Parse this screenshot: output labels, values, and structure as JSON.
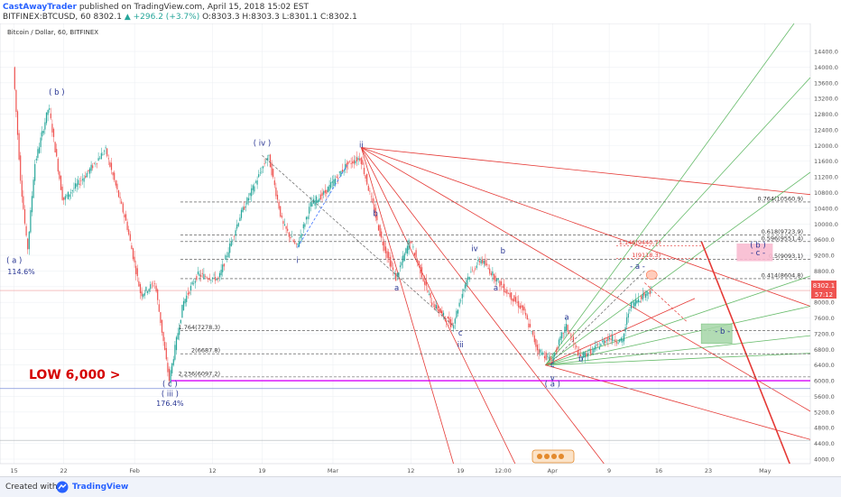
{
  "header": {
    "author": "CastAwayTrader",
    "published_text": "published on TradingView.com, April 15, 2018 15:02 EST",
    "symbol": "BITFINEX:BTCUSD, 60",
    "price": "8302.1",
    "change": "▲ +296.2 (+3.7%)",
    "ohlc": "O:8303.3 H:8303.3 L:8301.1 C:8302.1",
    "legend": "Bitcoin / Dollar, 60, BITFINEX"
  },
  "footer": {
    "created_label": "Created with",
    "brand": "TradingView"
  },
  "price_badge": {
    "price": "8302.1",
    "countdown": "57:12"
  },
  "chart_data": {
    "type": "candlestick",
    "symbol": "BTCUSD",
    "exchange": "BITFINEX",
    "interval": "60",
    "ylim": [
      4000,
      15000
    ],
    "y_ticks": [
      4000,
      4400,
      4800,
      5200,
      5600,
      6000,
      6400,
      6800,
      7200,
      7600,
      8000,
      8400,
      8800,
      9200,
      9600,
      10000,
      10400,
      10800,
      11200,
      11600,
      12000,
      12400,
      12800,
      13200,
      13600,
      14000,
      14400
    ],
    "x_ticks": [
      "15",
      "22",
      "Feb",
      "12",
      "19",
      "Mar",
      "12",
      "19",
      "12:00",
      "Apr",
      "9",
      "16",
      "23",
      "May"
    ],
    "price_path": [
      {
        "date": "2018-01-15",
        "price": 14000
      },
      {
        "date": "2018-01-16",
        "price": 11200
      },
      {
        "date": "2018-01-17",
        "price": 9300
      },
      {
        "date": "2018-01-18",
        "price": 11500
      },
      {
        "date": "2018-01-20",
        "price": 13000
      },
      {
        "date": "2018-01-22",
        "price": 10600
      },
      {
        "date": "2018-01-25",
        "price": 11200
      },
      {
        "date": "2018-01-28",
        "price": 11900
      },
      {
        "date": "2018-01-31",
        "price": 10000
      },
      {
        "date": "2018-02-02",
        "price": 8200
      },
      {
        "date": "2018-02-04",
        "price": 8500
      },
      {
        "date": "2018-02-06",
        "price": 6000
      },
      {
        "date": "2018-02-08",
        "price": 8000
      },
      {
        "date": "2018-02-10",
        "price": 8700
      },
      {
        "date": "2018-02-13",
        "price": 8600
      },
      {
        "date": "2018-02-16",
        "price": 10200
      },
      {
        "date": "2018-02-20",
        "price": 11750
      },
      {
        "date": "2018-02-22",
        "price": 10000
      },
      {
        "date": "2018-02-24",
        "price": 9400
      },
      {
        "date": "2018-02-26",
        "price": 10500
      },
      {
        "date": "2018-02-28",
        "price": 10800
      },
      {
        "date": "2018-03-03",
        "price": 11500
      },
      {
        "date": "2018-03-05",
        "price": 11700
      },
      {
        "date": "2018-03-08",
        "price": 9600
      },
      {
        "date": "2018-03-10",
        "price": 8600
      },
      {
        "date": "2018-03-12",
        "price": 9600
      },
      {
        "date": "2018-03-15",
        "price": 8000
      },
      {
        "date": "2018-03-18",
        "price": 7400
      },
      {
        "date": "2018-03-20",
        "price": 8600
      },
      {
        "date": "2018-03-22",
        "price": 9100
      },
      {
        "date": "2018-03-25",
        "price": 8400
      },
      {
        "date": "2018-03-28",
        "price": 7800
      },
      {
        "date": "2018-03-30",
        "price": 6800
      },
      {
        "date": "2018-04-01",
        "price": 6500
      },
      {
        "date": "2018-04-03",
        "price": 7400
      },
      {
        "date": "2018-04-05",
        "price": 6600
      },
      {
        "date": "2018-04-07",
        "price": 6800
      },
      {
        "date": "2018-04-09",
        "price": 7100
      },
      {
        "date": "2018-04-11",
        "price": 7000
      },
      {
        "date": "2018-04-12",
        "price": 7900
      },
      {
        "date": "2018-04-14",
        "price": 8200
      },
      {
        "date": "2018-04-15",
        "price": 8302
      }
    ],
    "fib_levels": [
      {
        "label": "0.764(10560.9)",
        "value": 10560.9
      },
      {
        "label": "0.618(9723.9)",
        "value": 9723.9
      },
      {
        "label": "0.596(9551.4)",
        "value": 9551.4
      },
      {
        "label": "0.5(9093.1)",
        "value": 9093.1
      },
      {
        "label": "0.414(8604.8)",
        "value": 8604.8
      },
      {
        "label": "1.764(7278.3)",
        "value": 7278.3
      },
      {
        "label": "2(6687.8)",
        "value": 6687.8
      },
      {
        "label": "2.236(6097.2)",
        "value": 6097.2
      }
    ],
    "red_fib_levels": [
      {
        "label": "1.146(9440.7)",
        "value": 9440.7
      },
      {
        "label": "1(9118.3)",
        "value": 9118.3
      }
    ],
    "wave_labels": [
      {
        "text": "( b )",
        "date": "2018-01-21",
        "price": 13300
      },
      {
        "text": "( a )",
        "date": "2018-01-15",
        "price": 9000
      },
      {
        "text": "114.6%",
        "date": "2018-01-16",
        "price": 8720
      },
      {
        "text": "( iv )",
        "date": "2018-02-19",
        "price": 12000
      },
      {
        "text": "ii",
        "date": "2018-03-05",
        "price": 11950
      },
      {
        "text": "b",
        "date": "2018-03-07",
        "price": 10200
      },
      {
        "text": "i",
        "date": "2018-02-24",
        "price": 9000
      },
      {
        "text": "a",
        "date": "2018-03-10",
        "price": 8300
      },
      {
        "text": "iv",
        "date": "2018-03-21",
        "price": 9300
      },
      {
        "text": "b",
        "date": "2018-03-25",
        "price": 9250
      },
      {
        "text": "a",
        "date": "2018-03-24",
        "price": 8300
      },
      {
        "text": "c",
        "date": "2018-03-19",
        "price": 7150
      },
      {
        "text": "iii",
        "date": "2018-03-19",
        "price": 6850
      },
      {
        "text": "a",
        "date": "2018-04-03",
        "price": 7550
      },
      {
        "text": "c",
        "date": "2018-04-01",
        "price": 6350
      },
      {
        "text": "b",
        "date": "2018-04-05",
        "price": 6500
      },
      {
        "text": "v",
        "date": "2018-04-01",
        "price": 6000
      },
      {
        "text": "( a )",
        "date": "2018-04-01",
        "price": 5850
      },
      {
        "text": "- a -",
        "date": "2018-04-13",
        "price": 8850
      },
      {
        "text": "( b )",
        "date": "2018-04-30",
        "price": 9400
      },
      {
        "text": "- c -",
        "date": "2018-04-30",
        "price": 9200
      },
      {
        "text": "- b -",
        "date": "2018-04-25",
        "price": 7200
      },
      {
        "text": "( c )",
        "date": "2018-02-06",
        "price": 5850
      },
      {
        "text": "( iii )",
        "date": "2018-02-06",
        "price": 5600
      },
      {
        "text": "176.4%",
        "date": "2018-02-06",
        "price": 5360
      }
    ],
    "low_annotation": {
      "text": "LOW 6,000 >",
      "value": 6000
    },
    "current_price": 8302.1
  }
}
